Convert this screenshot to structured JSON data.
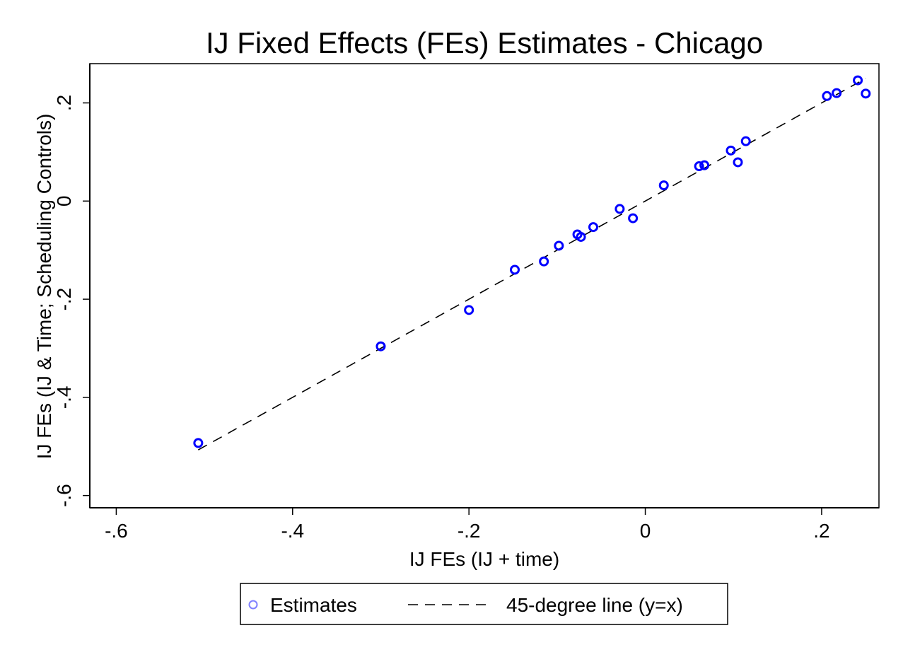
{
  "chart_data": {
    "type": "scatter",
    "title": "IJ Fixed Effects (FEs) Estimates - Chicago",
    "xlabel": "IJ FEs (IJ + time)",
    "ylabel": "IJ FEs (IJ & Time; Scheduling Controls)",
    "xlim": [
      -0.63,
      0.265
    ],
    "ylim": [
      -0.625,
      0.28
    ],
    "x_ticks": [
      {
        "value": -0.6,
        "label": "-.6"
      },
      {
        "value": -0.4,
        "label": "-.4"
      },
      {
        "value": -0.2,
        "label": "-.2"
      },
      {
        "value": 0,
        "label": "0"
      },
      {
        "value": 0.2,
        "label": ".2"
      }
    ],
    "y_ticks": [
      {
        "value": -0.6,
        "label": "-.6"
      },
      {
        "value": -0.4,
        "label": "-.4"
      },
      {
        "value": -0.2,
        "label": "-.2"
      },
      {
        "value": 0,
        "label": "0"
      },
      {
        "value": 0.2,
        "label": ".2"
      }
    ],
    "grid": false,
    "legend_position": "bottom",
    "series": [
      {
        "name": "Estimates",
        "type": "scatter",
        "marker": "hollow-circle",
        "color": "#0000ff",
        "x": [
          -0.507,
          -0.3,
          -0.2,
          -0.148,
          -0.115,
          -0.098,
          -0.077,
          -0.073,
          -0.059,
          -0.029,
          -0.014,
          0.021,
          0.061,
          0.067,
          0.097,
          0.105,
          0.114,
          0.206,
          0.217,
          0.241,
          0.25
        ],
        "y": [
          -0.493,
          -0.296,
          -0.222,
          -0.14,
          -0.123,
          -0.091,
          -0.068,
          -0.073,
          -0.053,
          -0.016,
          -0.035,
          0.032,
          0.071,
          0.073,
          0.103,
          0.079,
          0.122,
          0.214,
          0.22,
          0.246,
          0.219
        ]
      },
      {
        "name": "45-degree line (y=x)",
        "type": "line",
        "style": "dashed",
        "color": "#000000",
        "x": [
          -0.507,
          0.25
        ],
        "y": [
          -0.507,
          0.25
        ]
      }
    ]
  }
}
